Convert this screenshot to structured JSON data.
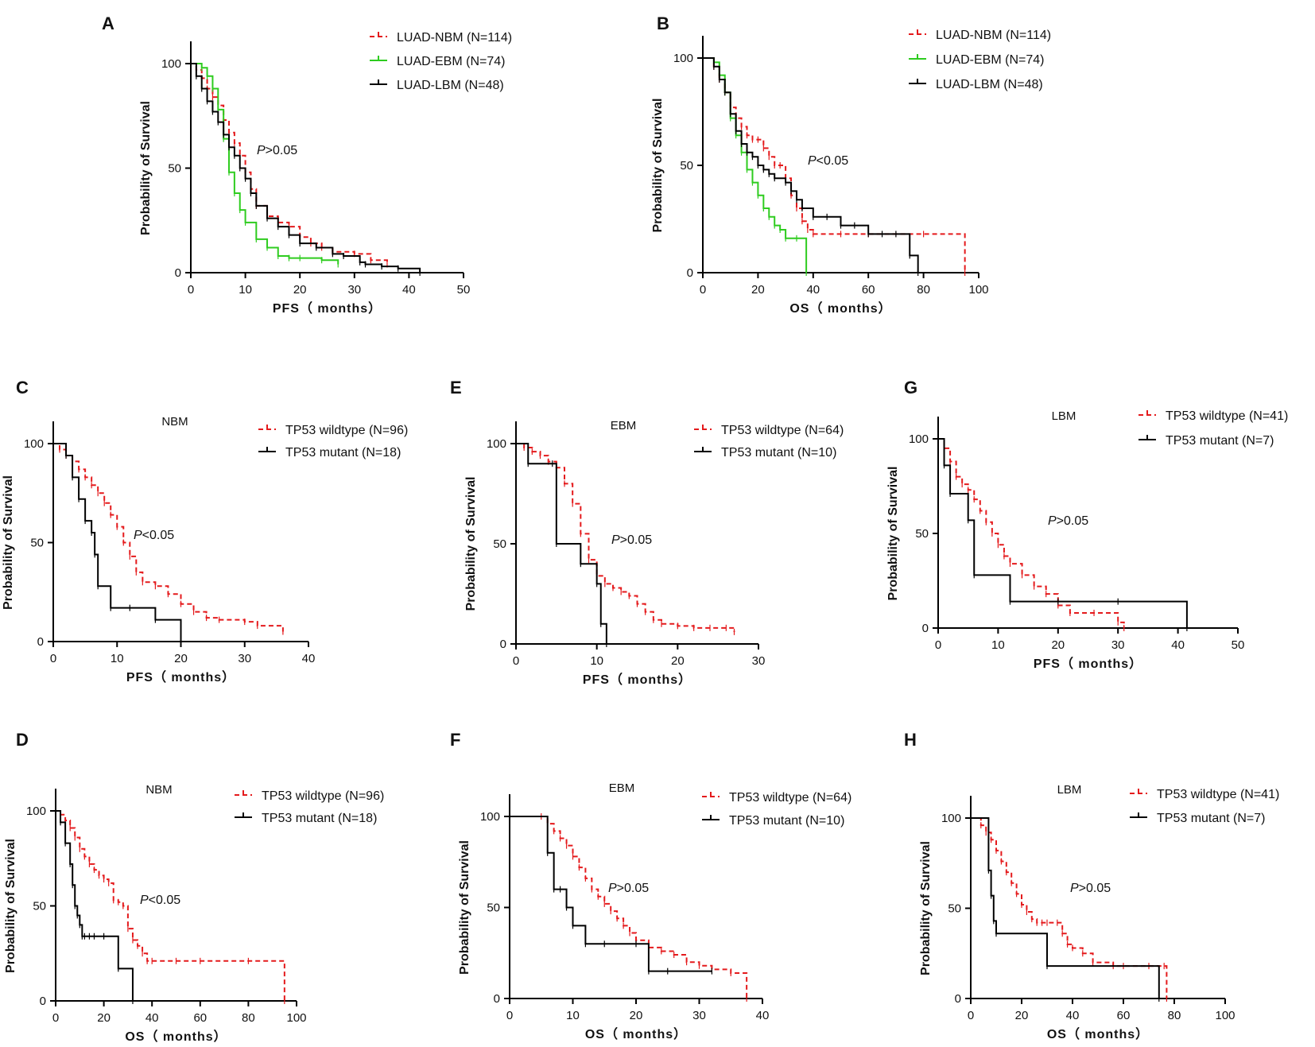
{
  "chart_data": [
    {
      "id": "A",
      "label": "A",
      "type": "line",
      "subtitle": "",
      "xlabel": "PFS（ months）",
      "ylabel": "Probability of Survival",
      "xlim": [
        0,
        50
      ],
      "xticks": [
        0,
        10,
        20,
        30,
        40,
        50
      ],
      "ylim": [
        0,
        100
      ],
      "yticks": [
        0,
        50,
        100
      ],
      "p_prefix": "P",
      "p_suffix": ">0.05",
      "series": [
        {
          "name": "LUAD-NBM (N=114)",
          "color": "#e41a1c",
          "dashed": true,
          "x": [
            0,
            1,
            2,
            3,
            4,
            5,
            6,
            7,
            8,
            9,
            10,
            11,
            12,
            14,
            16,
            18,
            20,
            22,
            24,
            26,
            30,
            33,
            36
          ],
          "y": [
            100,
            97,
            93,
            88,
            84,
            80,
            73,
            67,
            62,
            56,
            48,
            40,
            32,
            27,
            24,
            22,
            17,
            14,
            12,
            10,
            9,
            6,
            4
          ]
        },
        {
          "name": "LUAD-EBM (N=74)",
          "color": "#2ecc1f",
          "dashed": false,
          "x": [
            0,
            2,
            3,
            4,
            5,
            6,
            7,
            8,
            9,
            10,
            12,
            14,
            16,
            18,
            20,
            24,
            27
          ],
          "y": [
            100,
            98,
            94,
            88,
            78,
            64,
            48,
            38,
            30,
            24,
            16,
            12,
            8,
            7,
            7,
            6,
            4
          ]
        },
        {
          "name": "LUAD-LBM (N=48)",
          "color": "#000000",
          "dashed": false,
          "x": [
            0,
            1,
            2,
            3,
            4,
            5,
            6,
            7,
            8,
            9,
            10,
            11,
            12,
            14,
            16,
            18,
            20,
            23,
            26,
            28,
            31,
            32,
            35,
            38,
            42
          ],
          "y": [
            100,
            94,
            88,
            82,
            77,
            72,
            66,
            60,
            56,
            50,
            45,
            38,
            32,
            26,
            22,
            18,
            14,
            12,
            9,
            8,
            5,
            4,
            3,
            2,
            0
          ]
        }
      ]
    },
    {
      "id": "B",
      "label": "B",
      "type": "line",
      "subtitle": "",
      "xlabel": "OS（ months）",
      "ylabel": "Probability of Survival",
      "xlim": [
        0,
        100
      ],
      "xticks": [
        0,
        20,
        40,
        60,
        80,
        100
      ],
      "ylim": [
        0,
        100
      ],
      "yticks": [
        0,
        50,
        100
      ],
      "p_prefix": "P",
      "p_suffix": "<0.05",
      "series": [
        {
          "name": "LUAD-NBM (N=114)",
          "color": "#e41a1c",
          "dashed": true,
          "x": [
            0,
            4,
            6,
            8,
            10,
            12,
            14,
            16,
            18,
            20,
            22,
            24,
            26,
            28,
            30,
            32,
            34,
            36,
            38,
            40,
            50,
            60,
            80,
            95
          ],
          "y": [
            100,
            96,
            90,
            84,
            77,
            72,
            68,
            64,
            62,
            62,
            58,
            54,
            50,
            50,
            44,
            36,
            30,
            24,
            20,
            18,
            18,
            18,
            18,
            0
          ]
        },
        {
          "name": "LUAD-EBM (N=74)",
          "color": "#2ecc1f",
          "dashed": false,
          "x": [
            0,
            4,
            6,
            8,
            10,
            12,
            14,
            16,
            18,
            20,
            22,
            24,
            26,
            28,
            30,
            34,
            37.5
          ],
          "y": [
            100,
            98,
            92,
            84,
            72,
            64,
            56,
            48,
            42,
            36,
            30,
            26,
            22,
            20,
            16,
            16,
            0
          ]
        },
        {
          "name": "LUAD-LBM (N=48)",
          "color": "#000000",
          "dashed": false,
          "x": [
            0,
            4,
            6,
            8,
            10,
            12,
            14,
            16,
            18,
            20,
            22,
            24,
            26,
            30,
            32,
            34,
            36,
            40,
            45,
            50,
            55,
            60,
            65,
            70,
            75,
            78
          ],
          "y": [
            100,
            96,
            90,
            84,
            74,
            66,
            60,
            56,
            54,
            50,
            48,
            46,
            44,
            42,
            38,
            34,
            30,
            26,
            26,
            22,
            22,
            18,
            18,
            18,
            8,
            0
          ]
        }
      ]
    },
    {
      "id": "C",
      "label": "C",
      "type": "line",
      "subtitle": "NBM",
      "xlabel": "PFS（ months）",
      "ylabel": "Probability of Survival",
      "xlim": [
        0,
        40
      ],
      "xticks": [
        0,
        10,
        20,
        30,
        40
      ],
      "ylim": [
        0,
        100
      ],
      "yticks": [
        0,
        50,
        100
      ],
      "p_prefix": "P",
      "p_suffix": "<0.05",
      "series": [
        {
          "name": "TP53 wildtype (N=96)",
          "color": "#e41a1c",
          "dashed": true,
          "x": [
            0,
            1,
            2,
            3,
            4,
            5,
            6,
            7,
            8,
            9,
            10,
            11,
            12,
            13,
            14,
            16,
            18,
            20,
            22,
            24,
            26,
            30,
            32,
            36
          ],
          "y": [
            100,
            97,
            94,
            91,
            87,
            83,
            79,
            75,
            70,
            64,
            58,
            50,
            43,
            35,
            30,
            28,
            24,
            19,
            15,
            12,
            11,
            10,
            8,
            5
          ]
        },
        {
          "name": "TP53 mutant  (N=18)",
          "color": "#000000",
          "dashed": false,
          "x": [
            0,
            2,
            3,
            4,
            5,
            6,
            6.5,
            7,
            9,
            12,
            16,
            20
          ],
          "y": [
            100,
            94,
            83,
            72,
            61,
            55,
            44,
            28,
            17,
            17,
            11,
            0
          ]
        }
      ]
    },
    {
      "id": "D",
      "label": "D",
      "type": "line",
      "subtitle": "NBM",
      "xlabel": "OS（ months）",
      "ylabel": "Probability of Survival",
      "xlim": [
        0,
        100
      ],
      "xticks": [
        0,
        20,
        40,
        60,
        80,
        100
      ],
      "ylim": [
        0,
        100
      ],
      "yticks": [
        0,
        50,
        100
      ],
      "p_prefix": "P",
      "p_suffix": "<0.05",
      "series": [
        {
          "name": "TP53 wildtype (N=96)",
          "color": "#e41a1c",
          "dashed": true,
          "x": [
            0,
            2,
            4,
            6,
            8,
            10,
            12,
            14,
            16,
            18,
            20,
            22,
            24,
            26,
            28,
            30,
            32,
            34,
            36,
            38,
            40,
            50,
            60,
            80,
            95
          ],
          "y": [
            100,
            98,
            95,
            91,
            86,
            80,
            76,
            72,
            69,
            66,
            64,
            62,
            53,
            52,
            50,
            38,
            32,
            29,
            25,
            21,
            21,
            21,
            21,
            21,
            0
          ]
        },
        {
          "name": "TP53 mutant  (N=18)",
          "color": "#000000",
          "dashed": false,
          "x": [
            0,
            2,
            4,
            6,
            7,
            8,
            9,
            10,
            11,
            12,
            14,
            16,
            20,
            26,
            32
          ],
          "y": [
            100,
            94,
            83,
            72,
            61,
            50,
            45,
            40,
            34,
            34,
            34,
            34,
            34,
            17,
            0
          ]
        }
      ]
    },
    {
      "id": "E",
      "label": "E",
      "type": "line",
      "subtitle": "EBM",
      "xlabel": "PFS（ months）",
      "ylabel": "Probability of Survival",
      "xlim": [
        0,
        30
      ],
      "xticks": [
        0,
        10,
        20,
        30
      ],
      "ylim": [
        0,
        100
      ],
      "yticks": [
        0,
        50,
        100
      ],
      "p_prefix": "P",
      "p_suffix": ">0.05",
      "series": [
        {
          "name": "TP53 wildtype (N=64)",
          "color": "#e41a1c",
          "dashed": true,
          "x": [
            0,
            1,
            2,
            3,
            4,
            5,
            6,
            7,
            8,
            9,
            10,
            11,
            12,
            13,
            14,
            15,
            16,
            17,
            18,
            20,
            22,
            24,
            26,
            27
          ],
          "y": [
            100,
            98,
            96,
            94,
            91,
            88,
            80,
            70,
            55,
            42,
            34,
            30,
            28,
            26,
            24,
            20,
            16,
            12,
            10,
            9,
            8,
            8,
            8,
            6
          ]
        },
        {
          "name": "TP53 mutant  (N=10)",
          "color": "#000000",
          "dashed": false,
          "x": [
            0,
            1.5,
            4.5,
            5,
            8,
            10,
            10.5,
            11.2
          ],
          "y": [
            100,
            90,
            90,
            50,
            40,
            30,
            10,
            0
          ]
        }
      ]
    },
    {
      "id": "F",
      "label": "F",
      "type": "line",
      "subtitle": "EBM",
      "xlabel": "OS（ months）",
      "ylabel": "Probability of Survival",
      "xlim": [
        0,
        40
      ],
      "xticks": [
        0,
        10,
        20,
        30,
        40
      ],
      "ylim": [
        0,
        100
      ],
      "yticks": [
        0,
        50,
        100
      ],
      "p_prefix": "P",
      "p_suffix": ">0.05",
      "series": [
        {
          "name": "TP53 wildtype (N=64)",
          "color": "#e41a1c",
          "dashed": true,
          "x": [
            0,
            5,
            6,
            7,
            8,
            9,
            10,
            11,
            12,
            13,
            14,
            15,
            16,
            17,
            18,
            19,
            20,
            22,
            24,
            26,
            28,
            30,
            32,
            35,
            37.5
          ],
          "y": [
            100,
            100,
            96,
            92,
            88,
            84,
            78,
            72,
            66,
            60,
            56,
            52,
            48,
            44,
            40,
            36,
            32,
            28,
            26,
            24,
            20,
            18,
            16,
            14,
            0
          ]
        },
        {
          "name": "TP53 mutant  (N=10)",
          "color": "#000000",
          "dashed": false,
          "x": [
            0,
            6,
            7,
            8,
            9,
            10,
            12,
            15,
            20,
            22,
            25,
            32
          ],
          "y": [
            100,
            80,
            60,
            60,
            50,
            40,
            30,
            30,
            30,
            15,
            15,
            15
          ]
        }
      ]
    },
    {
      "id": "G",
      "label": "G",
      "type": "line",
      "subtitle": "LBM",
      "xlabel": "PFS（ months）",
      "ylabel": "Probability of Survival",
      "xlim": [
        0,
        50
      ],
      "xticks": [
        0,
        10,
        20,
        30,
        40,
        50
      ],
      "ylim": [
        0,
        100
      ],
      "yticks": [
        0,
        50,
        100
      ],
      "p_prefix": "P",
      "p_suffix": ">0.05",
      "series": [
        {
          "name": "TP53 wildtype (N=41)",
          "color": "#e41a1c",
          "dashed": true,
          "x": [
            0,
            1,
            2,
            3,
            4,
            5,
            6,
            7,
            8,
            9,
            10,
            11,
            12,
            14,
            16,
            18,
            20,
            22,
            26,
            30,
            31
          ],
          "y": [
            100,
            95,
            88,
            80,
            76,
            73,
            68,
            62,
            56,
            50,
            44,
            38,
            34,
            28,
            22,
            18,
            12,
            8,
            8,
            3,
            0
          ]
        },
        {
          "name": "TP53 mutant   (N=7)",
          "color": "#000000",
          "dashed": false,
          "x": [
            0,
            1,
            2,
            5,
            6,
            12,
            20,
            30,
            41.5
          ],
          "y": [
            100,
            86,
            71,
            57,
            28,
            14,
            14,
            14,
            0
          ]
        }
      ]
    },
    {
      "id": "H",
      "label": "H",
      "type": "line",
      "subtitle": "LBM",
      "xlabel": "OS（ months）",
      "ylabel": "Probability of Survival",
      "xlim": [
        0,
        100
      ],
      "xticks": [
        0,
        20,
        40,
        60,
        80,
        100
      ],
      "ylim": [
        0,
        100
      ],
      "yticks": [
        0,
        50,
        100
      ],
      "p_prefix": "P",
      "p_suffix": ">0.05",
      "series": [
        {
          "name": "TP53 wildtype (N=41)",
          "color": "#e41a1c",
          "dashed": true,
          "x": [
            0,
            4,
            6,
            8,
            10,
            12,
            14,
            16,
            18,
            20,
            22,
            24,
            26,
            28,
            30,
            34,
            36,
            38,
            40,
            44,
            48,
            56,
            60,
            70,
            76,
            77
          ],
          "y": [
            100,
            96,
            92,
            88,
            82,
            76,
            70,
            64,
            58,
            52,
            48,
            44,
            42,
            42,
            42,
            42,
            36,
            30,
            28,
            25,
            20,
            18,
            18,
            18,
            18,
            0
          ]
        },
        {
          "name": "TP53 mutant   (N=7)",
          "color": "#000000",
          "dashed": false,
          "x": [
            0,
            7,
            8,
            9,
            10,
            30,
            74
          ],
          "y": [
            100,
            71,
            57,
            43,
            36,
            18,
            0
          ]
        }
      ]
    }
  ]
}
